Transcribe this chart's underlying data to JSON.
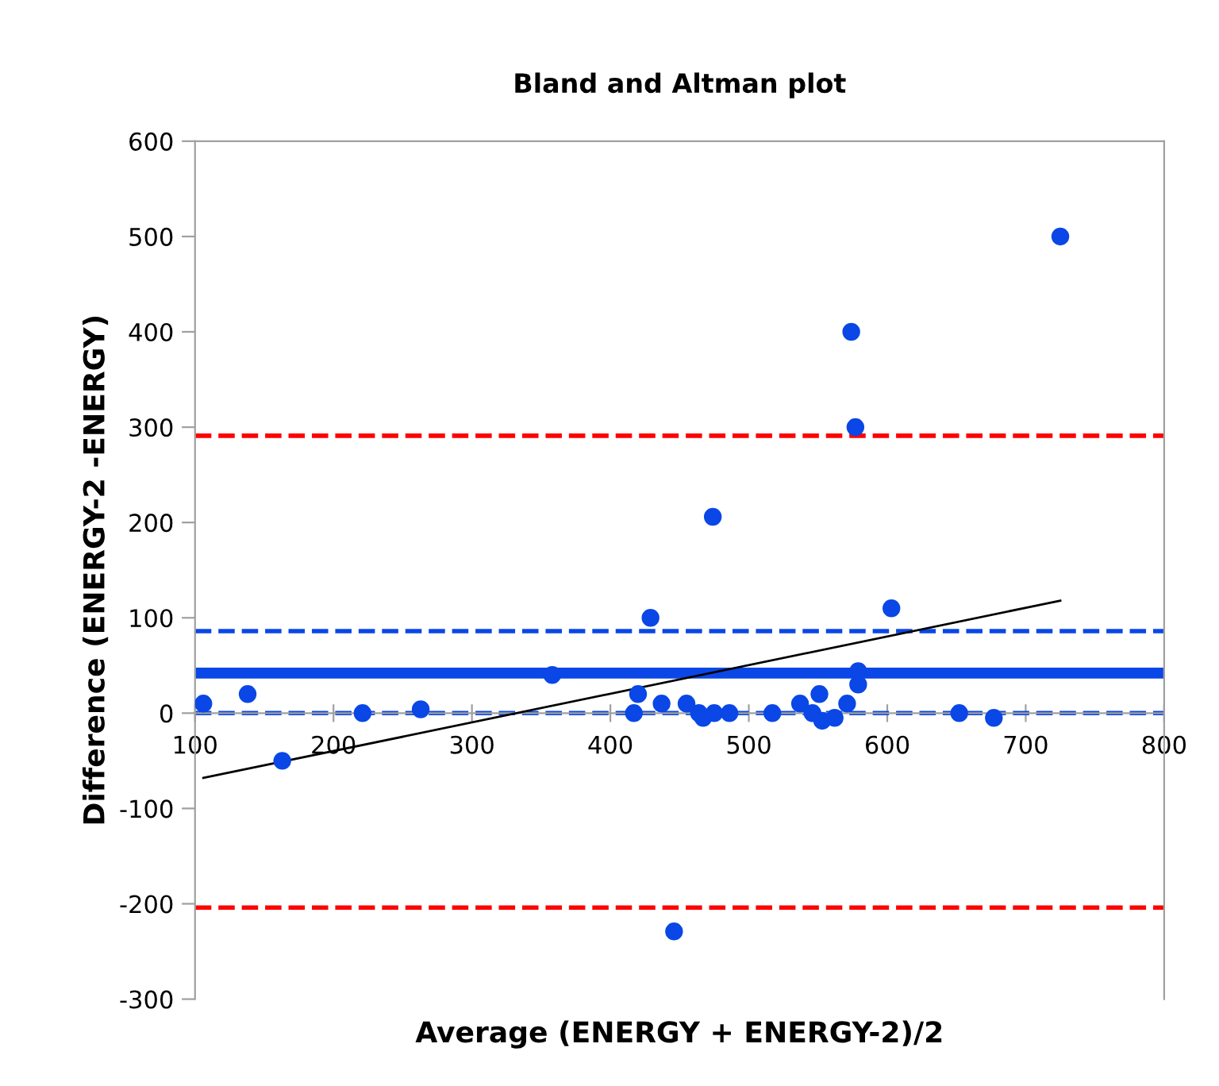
{
  "chart_data": {
    "type": "scatter",
    "title": "Bland and Altman plot",
    "xlabel": "Average (ENERGY + ENERGY-2)/2",
    "ylabel": "Difference (ENERGY-2 -ENERGY)",
    "xlim": [
      100,
      800
    ],
    "ylim": [
      -300,
      600
    ],
    "xticks": [
      100,
      200,
      300,
      400,
      500,
      600,
      700,
      800
    ],
    "yticks": [
      -300,
      -200,
      -100,
      0,
      100,
      200,
      300,
      400,
      500,
      600
    ],
    "grid": false,
    "legend": false,
    "marker": "circle",
    "series": [
      {
        "color": "#0a47e6",
        "x": [
          106,
          138,
          163,
          221,
          263,
          358,
          417,
          420,
          429,
          437,
          446,
          455,
          464,
          467,
          474,
          475,
          486,
          517,
          537,
          546,
          551,
          553,
          562,
          571,
          574,
          577,
          579,
          579,
          603,
          652,
          677,
          725
        ],
        "values": [
          10,
          20,
          -50,
          0,
          4,
          40,
          0,
          20,
          100,
          10,
          -229,
          10,
          0,
          -5,
          206,
          0,
          0,
          0,
          10,
          0,
          20,
          -8,
          -5,
          10,
          400,
          300,
          30,
          44,
          110,
          0,
          -5,
          500
        ]
      },
      {
        "type": "line",
        "color": "#000000",
        "x": [
          106,
          725
        ],
        "values": [
          -68,
          118
        ],
        "marker": "none",
        "line_style": "solid"
      }
    ],
    "ref_lines": [
      {
        "axis": "y",
        "value": 42,
        "color": "#0a47e6",
        "line_style": "solid"
      },
      {
        "axis": "y",
        "value": 86,
        "color": "#0a47e6",
        "line_style": "dashed"
      },
      {
        "axis": "y",
        "value": 0,
        "color": "#0a47e6",
        "line_style": "dashed"
      },
      {
        "axis": "y",
        "value": 291,
        "color": "#ff0000",
        "line_style": "dashed"
      },
      {
        "axis": "y",
        "value": -204,
        "color": "#ff0000",
        "line_style": "dashed"
      }
    ]
  }
}
